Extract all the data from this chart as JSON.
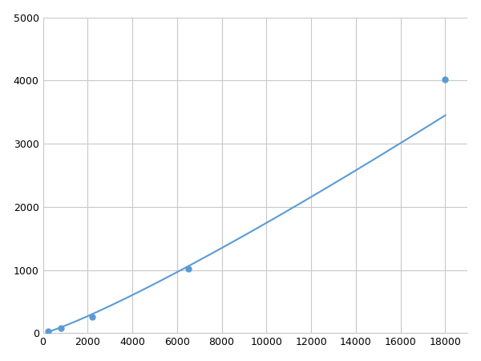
{
  "x": [
    250,
    800,
    2200,
    6500,
    18000
  ],
  "y": [
    30,
    80,
    260,
    1020,
    4020
  ],
  "line_color": "#5b9bd5",
  "marker_color": "#5b9bd5",
  "marker_style": "o",
  "marker_size": 5,
  "linewidth": 1.5,
  "xlim": [
    0,
    19000
  ],
  "ylim": [
    0,
    5000
  ],
  "xticks": [
    0,
    2000,
    4000,
    6000,
    8000,
    10000,
    12000,
    14000,
    16000,
    18000
  ],
  "yticks": [
    0,
    1000,
    2000,
    3000,
    4000,
    5000
  ],
  "grid_color": "#c8c8c8",
  "background_color": "#ffffff",
  "figure_bg": "#ffffff"
}
